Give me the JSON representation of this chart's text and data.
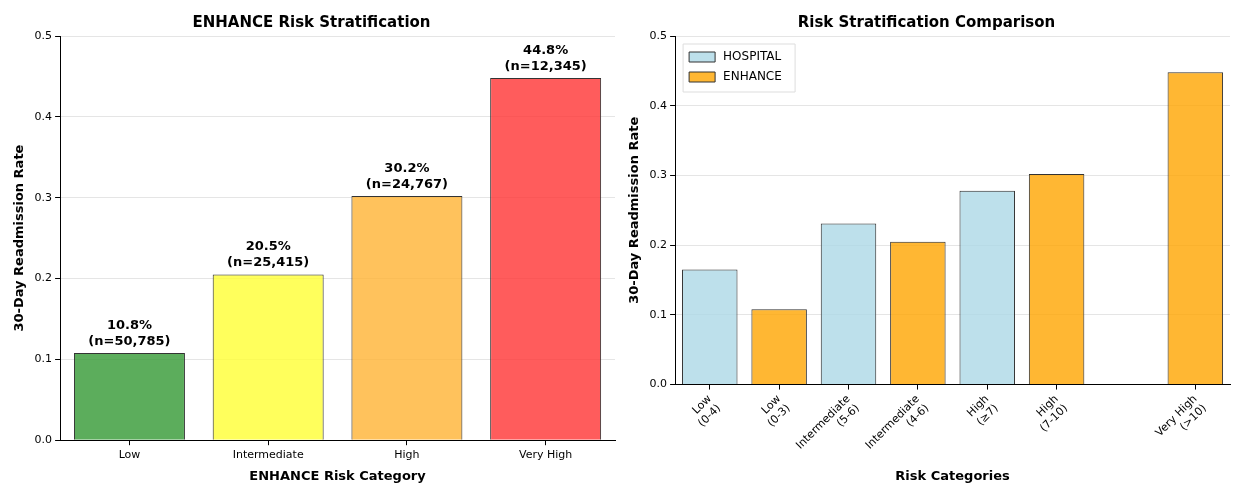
{
  "chart_data": [
    {
      "type": "bar",
      "title": "ENHANCE Risk Stratification",
      "xlabel": "ENHANCE Risk Category",
      "ylabel": "30-Day Readmission Rate",
      "categories": [
        "Low",
        "Intermediate",
        "High",
        "Very High"
      ],
      "values": [
        0.108,
        0.205,
        0.302,
        0.448
      ],
      "colors": [
        "#339933",
        "#ffff33",
        "#ffb333",
        "#ff3333"
      ],
      "value_labels": [
        "10.8%\n(n=50,785)",
        "20.5%\n(n=25,415)",
        "30.2%\n(n=24,767)",
        "44.8%\n(n=12,345)"
      ],
      "ylim": [
        0,
        0.5
      ],
      "yticks": [
        {
          "value": 0,
          "label": "0.0"
        },
        0.1,
        0.2,
        0.3,
        0.4,
        0.5
      ],
      "grid": "y",
      "legend": false
    },
    {
      "type": "bar",
      "title": "Risk Stratification Comparison",
      "xlabel": "Risk Categories",
      "ylabel": "30-Day Readmission Rate",
      "categories": [
        "Low\n(0-4)",
        "Low\n(0-3)",
        "Intermediate\n(5-6)",
        "Intermediate\n(4-6)",
        "High\n(≥7)",
        "High\n(7-10)",
        null,
        "Very High\n(>10)"
      ],
      "series": [
        {
          "name": "HOSPITAL",
          "color": "#add8e6",
          "values": [
            0.165,
            null,
            0.231,
            null,
            0.278,
            null,
            null,
            null
          ]
        },
        {
          "name": "ENHANCE",
          "color": "#ffa500",
          "values": [
            null,
            0.108,
            null,
            0.205,
            null,
            0.302,
            null,
            0.448
          ]
        }
      ],
      "ylim": [
        0,
        0.5
      ],
      "yticks": [
        {
          "value": 0,
          "label": "0.0"
        },
        0.1,
        0.2,
        0.3,
        0.4,
        0.5
      ],
      "grid": "y",
      "legend": "top left"
    }
  ]
}
